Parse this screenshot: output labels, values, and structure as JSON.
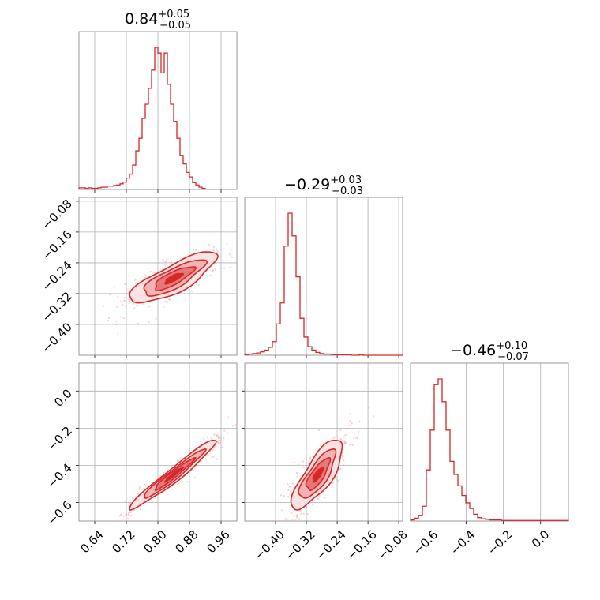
{
  "chart_data": {
    "type": "corner",
    "color": "#d62728",
    "grid": true,
    "parameters": [
      {
        "median": 0.84,
        "plus": 0.05,
        "minus": 0.05,
        "title": {
          "value": "0.84",
          "sup": "+0.05",
          "sub": "−0.05"
        },
        "range": [
          0.6,
          1.0
        ],
        "ticks": [
          0.64,
          0.72,
          0.8,
          0.88,
          0.96
        ],
        "tick_labels": [
          "0.64",
          "0.72",
          "0.80",
          "0.88",
          "0.96"
        ]
      },
      {
        "median": -0.29,
        "plus": 0.03,
        "minus": 0.03,
        "title": {
          "value": "−0.29",
          "sup": "+0.03",
          "sub": "−0.03"
        },
        "range": [
          -0.48,
          -0.07
        ],
        "ticks": [
          -0.4,
          -0.32,
          -0.24,
          -0.16,
          -0.08
        ],
        "tick_labels": [
          "−0.40",
          "−0.32",
          "−0.24",
          "−0.16",
          "−0.08"
        ]
      },
      {
        "median": -0.46,
        "plus": 0.1,
        "minus": 0.07,
        "title": {
          "value": "−0.46",
          "sup": "+0.10",
          "sub": "−0.07"
        },
        "range": [
          -0.7,
          0.15
        ],
        "ticks": [
          -0.6,
          -0.4,
          -0.2,
          0.0
        ],
        "tick_labels": [
          "−0.6",
          "−0.4",
          "−0.2",
          "0.0"
        ]
      }
    ],
    "histograms": [
      {
        "edges_start": 0.6,
        "bin_width": 0.008,
        "counts": [
          3,
          3,
          2,
          3,
          2,
          2,
          3,
          4,
          4,
          6,
          6,
          7,
          8,
          10,
          13,
          20,
          27,
          43,
          68,
          90,
          125,
          150,
          178,
          210,
          250,
          240,
          205,
          240,
          185,
          150,
          120,
          90,
          60,
          45,
          30,
          22,
          12,
          8,
          4,
          2
        ]
      },
      {
        "edges_start": -0.48,
        "bin_width": 0.01025,
        "counts": [
          1,
          2,
          3,
          4,
          6,
          9,
          14,
          24,
          55,
          92,
          192,
          250,
          210,
          138,
          65,
          32,
          15,
          9,
          5,
          3,
          2,
          2,
          1,
          1,
          1,
          1,
          1,
          0,
          0,
          1,
          0,
          0,
          0,
          0,
          0,
          0,
          0,
          0,
          0,
          0
        ]
      },
      {
        "edges_start": -0.7,
        "bin_width": 0.02125,
        "counts": [
          2,
          5,
          10,
          26,
          90,
          160,
          240,
          250,
          210,
          160,
          105,
          82,
          62,
          45,
          32,
          22,
          12,
          6,
          4,
          3,
          2,
          2,
          2,
          1,
          1,
          1,
          1,
          1,
          1,
          1,
          1,
          1,
          1,
          1,
          1,
          1,
          1,
          1,
          1,
          1
        ]
      }
    ],
    "correlations": [
      {
        "x_param": 0,
        "y_param": 1,
        "mean": [
          0.84,
          -0.28
        ],
        "std": [
          0.05,
          0.03
        ],
        "rho": 0.8
      },
      {
        "x_param": 0,
        "y_param": 2,
        "mean": [
          0.84,
          -0.45
        ],
        "std": [
          0.05,
          0.085
        ],
        "rho": 0.97
      },
      {
        "x_param": 1,
        "y_param": 2,
        "mean": [
          -0.29,
          -0.45
        ],
        "std": [
          0.03,
          0.085
        ],
        "rho": 0.78
      }
    ]
  }
}
